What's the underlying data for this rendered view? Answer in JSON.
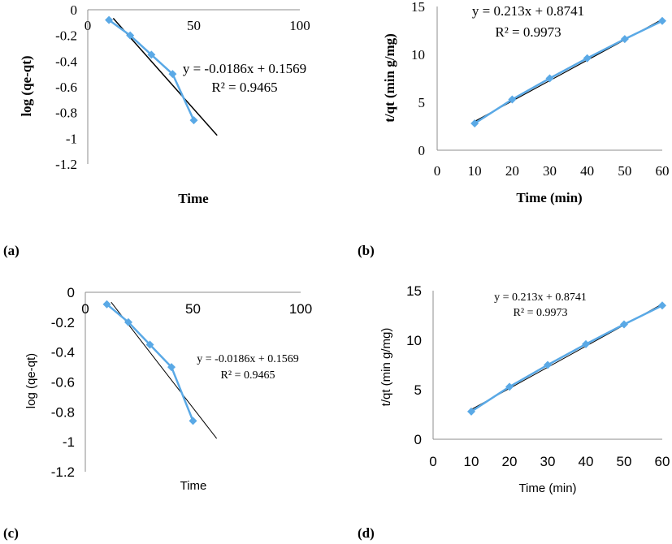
{
  "colors": {
    "series": "#5aa9e6",
    "trend": "#000000",
    "axis": "#8c8c8c"
  },
  "chart_data": [
    {
      "id": "a",
      "type": "scatter",
      "style": "bold-serif",
      "panel_label": "(a)",
      "xlabel": "Time",
      "ylabel": "log (qe-qt)",
      "xlim": [
        0,
        100
      ],
      "ylim": [
        -1.2,
        0
      ],
      "xticks": [
        "0",
        "50",
        "100"
      ],
      "yticks": [
        "0",
        "-0.2",
        "-0.4",
        "-0.6",
        "-0.8",
        "-1",
        "-1.2"
      ],
      "series": [
        {
          "name": "log (qe-qt)",
          "x": [
            10,
            20,
            30,
            40,
            50
          ],
          "y": [
            -0.08,
            -0.2,
            -0.35,
            -0.5,
            -0.86
          ]
        }
      ],
      "trendline": {
        "slope": -0.0186,
        "intercept": 0.1569,
        "x_range": [
          12,
          61
        ]
      },
      "equation": "y = -0.0186x + 0.1569",
      "r_squared": "R² = 0.9465"
    },
    {
      "id": "b",
      "type": "scatter",
      "style": "bold-serif",
      "panel_label": "(b)",
      "xlabel": "Time (min)",
      "ylabel": "t/qt (min g/mg)",
      "xlim": [
        0,
        60
      ],
      "ylim": [
        0,
        15
      ],
      "xticks": [
        "0",
        "10",
        "20",
        "30",
        "40",
        "50",
        "60"
      ],
      "yticks": [
        "0",
        "5",
        "10",
        "15"
      ],
      "series": [
        {
          "name": "t/qt",
          "x": [
            10,
            20,
            30,
            40,
            50,
            60
          ],
          "y": [
            2.8,
            5.3,
            7.5,
            9.6,
            11.6,
            13.5
          ]
        }
      ],
      "trendline": {
        "slope": 0.213,
        "intercept": 0.8741,
        "x_range": [
          10,
          60
        ]
      },
      "equation": "y = 0.213x + 0.8741",
      "r_squared": "R² = 0.9973"
    },
    {
      "id": "c",
      "type": "scatter",
      "style": "plain",
      "panel_label": "(c)",
      "xlabel": "Time",
      "ylabel": "log (qe-qt)",
      "xlim": [
        0,
        100
      ],
      "ylim": [
        -1.2,
        0
      ],
      "xticks": [
        "0",
        "50",
        "100"
      ],
      "yticks": [
        "0",
        "-0.2",
        "-0.4",
        "-0.6",
        "-0.8",
        "-1",
        "-1.2"
      ],
      "series": [
        {
          "name": "log (qe-qt)",
          "x": [
            10,
            20,
            30,
            40,
            50
          ],
          "y": [
            -0.08,
            -0.2,
            -0.35,
            -0.5,
            -0.86
          ]
        }
      ],
      "trendline": {
        "slope": -0.0186,
        "intercept": 0.1569,
        "x_range": [
          12,
          61
        ]
      },
      "equation": "y = -0.0186x + 0.1569",
      "r_squared": "R² = 0.9465"
    },
    {
      "id": "d",
      "type": "scatter",
      "style": "plain",
      "panel_label": "(d)",
      "xlabel": "Time (min)",
      "ylabel": "t/qt (min g/mg)",
      "xlim": [
        0,
        60
      ],
      "ylim": [
        0,
        15
      ],
      "xticks": [
        "0",
        "10",
        "20",
        "30",
        "40",
        "50",
        "60"
      ],
      "yticks": [
        "0",
        "5",
        "10",
        "15"
      ],
      "series": [
        {
          "name": "t/qt",
          "x": [
            10,
            20,
            30,
            40,
            50,
            60
          ],
          "y": [
            2.8,
            5.3,
            7.5,
            9.6,
            11.6,
            13.5
          ]
        }
      ],
      "trendline": {
        "slope": 0.213,
        "intercept": 0.8741,
        "x_range": [
          10,
          60
        ]
      },
      "equation": "y = 0.213x + 0.8741",
      "r_squared": "R² = 0.9973"
    }
  ]
}
